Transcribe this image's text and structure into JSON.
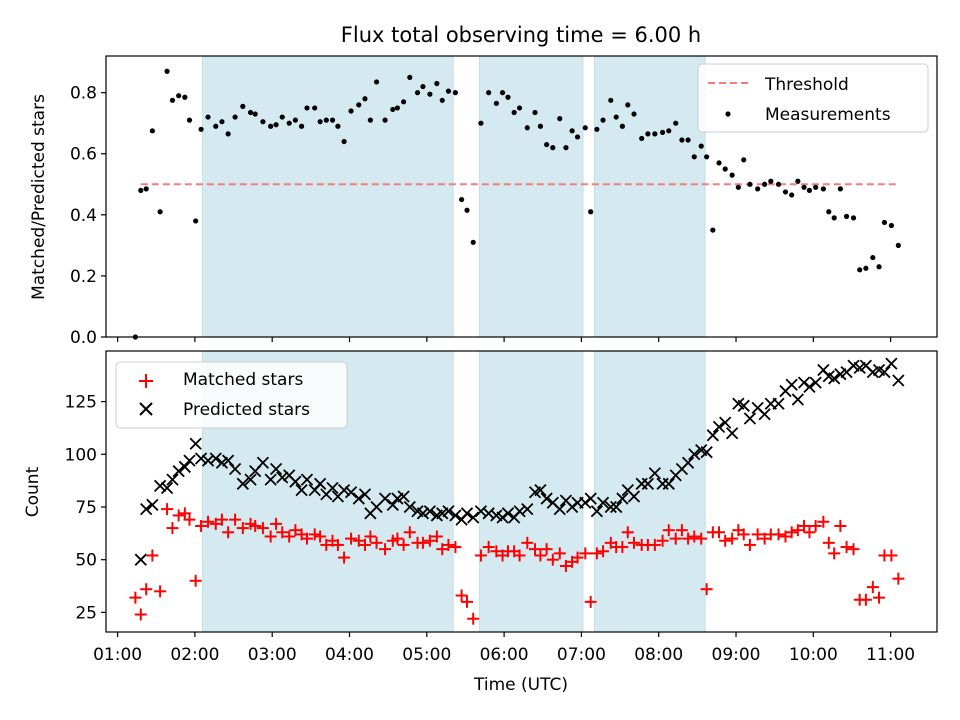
{
  "chart_data": {
    "type": "scatter",
    "title": "Flux total observing time = 6.00 h",
    "xlabel": "Time (UTC)",
    "x_unit": "hours UTC",
    "xlim": [
      0.85,
      11.6
    ],
    "xticks": [
      {
        "label": "01:00",
        "value": 1
      },
      {
        "label": "02:00",
        "value": 2
      },
      {
        "label": "03:00",
        "value": 3
      },
      {
        "label": "04:00",
        "value": 4
      },
      {
        "label": "05:00",
        "value": 5
      },
      {
        "label": "06:00",
        "value": 6
      },
      {
        "label": "07:00",
        "value": 7
      },
      {
        "label": "08:00",
        "value": 8
      },
      {
        "label": "09:00",
        "value": 9
      },
      {
        "label": "10:00",
        "value": 10
      },
      {
        "label": "11:00",
        "value": 11
      }
    ],
    "shaded_intervals": [
      [
        2.1,
        5.34
      ],
      [
        5.68,
        7.02
      ],
      [
        7.17,
        8.6
      ]
    ],
    "shade_color": "#d4eaf0",
    "top_panel": {
      "ylabel": "Matched/Predicted stars",
      "ylim": [
        0,
        0.92
      ],
      "yticks": [
        "0.0",
        "0.2",
        "0.4",
        "0.6",
        "0.8"
      ],
      "threshold": {
        "name": "Threshold",
        "value": 0.5,
        "x_range": [
          1.3,
          11.1
        ],
        "color": "#f47c7c"
      },
      "legend_position": "top-right",
      "series": [
        {
          "name": "Measurements",
          "color": "#000000",
          "x": [
            1.23,
            1.3,
            1.37,
            1.45,
            1.55,
            1.64,
            1.71,
            1.79,
            1.87,
            1.93,
            2.01,
            2.08,
            2.17,
            2.27,
            2.35,
            2.43,
            2.52,
            2.62,
            2.72,
            2.78,
            2.88,
            2.98,
            3.05,
            3.13,
            3.22,
            3.3,
            3.38,
            3.45,
            3.55,
            3.62,
            3.7,
            3.78,
            3.85,
            3.93,
            4.02,
            4.12,
            4.2,
            4.27,
            4.35,
            4.46,
            4.56,
            4.62,
            4.7,
            4.78,
            4.88,
            4.95,
            5.04,
            5.13,
            5.2,
            5.28,
            5.37,
            5.45,
            5.52,
            5.6,
            5.7,
            5.8,
            5.9,
            5.98,
            6.05,
            6.13,
            6.2,
            6.3,
            6.4,
            6.47,
            6.55,
            6.63,
            6.72,
            6.8,
            6.88,
            6.95,
            7.05,
            7.12,
            7.2,
            7.28,
            7.38,
            7.45,
            7.53,
            7.6,
            7.68,
            7.78,
            7.86,
            7.95,
            8.05,
            8.13,
            8.22,
            8.3,
            8.38,
            8.46,
            8.55,
            8.62,
            8.7,
            8.78,
            8.86,
            8.95,
            9.03,
            9.1,
            9.18,
            9.28,
            9.37,
            9.45,
            9.55,
            9.64,
            9.72,
            9.8,
            9.88,
            9.95,
            10.03,
            10.13,
            10.2,
            10.27,
            10.35,
            10.43,
            10.52,
            10.6,
            10.68,
            10.77,
            10.85,
            10.92,
            11.01,
            11.1
          ],
          "y": [
            0.0,
            0.48,
            0.485,
            0.675,
            0.41,
            0.87,
            0.775,
            0.79,
            0.785,
            0.71,
            0.38,
            0.68,
            0.72,
            0.69,
            0.705,
            0.665,
            0.72,
            0.755,
            0.735,
            0.73,
            0.705,
            0.69,
            0.695,
            0.72,
            0.7,
            0.71,
            0.69,
            0.75,
            0.75,
            0.705,
            0.71,
            0.71,
            0.69,
            0.64,
            0.74,
            0.76,
            0.78,
            0.71,
            0.835,
            0.71,
            0.745,
            0.75,
            0.77,
            0.85,
            0.8,
            0.82,
            0.795,
            0.83,
            0.775,
            0.805,
            0.8,
            0.45,
            0.415,
            0.31,
            0.7,
            0.8,
            0.765,
            0.8,
            0.785,
            0.735,
            0.75,
            0.685,
            0.735,
            0.69,
            0.63,
            0.62,
            0.715,
            0.62,
            0.675,
            0.655,
            0.685,
            0.41,
            0.68,
            0.71,
            0.775,
            0.72,
            0.69,
            0.76,
            0.73,
            0.65,
            0.665,
            0.665,
            0.67,
            0.675,
            0.7,
            0.645,
            0.645,
            0.59,
            0.625,
            0.59,
            0.35,
            0.57,
            0.55,
            0.53,
            0.49,
            0.58,
            0.5,
            0.485,
            0.5,
            0.51,
            0.5,
            0.475,
            0.465,
            0.51,
            0.49,
            0.48,
            0.49,
            0.485,
            0.41,
            0.39,
            0.485,
            0.395,
            0.39,
            0.22,
            0.225,
            0.26,
            0.23,
            0.375,
            0.365,
            0.3
          ]
        }
      ]
    },
    "bottom_panel": {
      "ylabel": "Count",
      "ylim": [
        15.7,
        149
      ],
      "yticks": [
        "25",
        "50",
        "75",
        "100",
        "125"
      ],
      "legend_position": "top-left",
      "series": [
        {
          "name": "Matched stars",
          "marker": "+",
          "color": "#ff0000",
          "x": [
            1.23,
            1.3,
            1.37,
            1.45,
            1.55,
            1.64,
            1.71,
            1.79,
            1.87,
            1.93,
            2.01,
            2.08,
            2.17,
            2.27,
            2.35,
            2.43,
            2.52,
            2.62,
            2.72,
            2.78,
            2.88,
            2.98,
            3.05,
            3.13,
            3.22,
            3.3,
            3.38,
            3.45,
            3.55,
            3.62,
            3.7,
            3.78,
            3.85,
            3.93,
            4.02,
            4.12,
            4.2,
            4.27,
            4.35,
            4.46,
            4.56,
            4.62,
            4.7,
            4.78,
            4.88,
            4.95,
            5.04,
            5.13,
            5.2,
            5.28,
            5.37,
            5.45,
            5.52,
            5.6,
            5.7,
            5.8,
            5.9,
            5.98,
            6.05,
            6.13,
            6.2,
            6.3,
            6.4,
            6.47,
            6.55,
            6.63,
            6.72,
            6.8,
            6.88,
            6.95,
            7.05,
            7.12,
            7.2,
            7.28,
            7.38,
            7.45,
            7.53,
            7.6,
            7.68,
            7.78,
            7.86,
            7.95,
            8.05,
            8.13,
            8.22,
            8.3,
            8.38,
            8.46,
            8.55,
            8.62,
            8.7,
            8.78,
            8.86,
            8.95,
            9.03,
            9.1,
            9.18,
            9.28,
            9.37,
            9.45,
            9.55,
            9.64,
            9.72,
            9.8,
            9.88,
            9.95,
            10.03,
            10.13,
            10.2,
            10.27,
            10.35,
            10.43,
            10.52,
            10.6,
            10.68,
            10.77,
            10.85,
            10.92,
            11.01,
            11.1
          ],
          "y": [
            32,
            24,
            36,
            52,
            35,
            74,
            65,
            71,
            72,
            69,
            40,
            66,
            68,
            67,
            69,
            63,
            69,
            65,
            67,
            66,
            65,
            61,
            67,
            63,
            61,
            64,
            62,
            60,
            62,
            61,
            57,
            59,
            57,
            51,
            60,
            59,
            57,
            61,
            58,
            55,
            59,
            60,
            57,
            63,
            58,
            58,
            59,
            61,
            55,
            57,
            56,
            33,
            30,
            22,
            52,
            56,
            54,
            52,
            54,
            54,
            52,
            58,
            55,
            52,
            55,
            50,
            53,
            47,
            49,
            51,
            53,
            30,
            53,
            54,
            58,
            56,
            56,
            63,
            58,
            57,
            57,
            57,
            59,
            64,
            60,
            64,
            60,
            61,
            60,
            36,
            63,
            63,
            59,
            60,
            64,
            62,
            57,
            62,
            60,
            62,
            62,
            61,
            63,
            64,
            66,
            63,
            66,
            68,
            58,
            53,
            66,
            56,
            55,
            31,
            31,
            37,
            32,
            52,
            52,
            41
          ]
        },
        {
          "name": "Predicted stars",
          "marker": "x",
          "color": "#000000",
          "x": [
            1.3,
            1.37,
            1.45,
            1.55,
            1.64,
            1.71,
            1.79,
            1.87,
            1.93,
            2.01,
            2.08,
            2.17,
            2.27,
            2.35,
            2.43,
            2.52,
            2.62,
            2.72,
            2.78,
            2.88,
            2.98,
            3.05,
            3.13,
            3.22,
            3.3,
            3.38,
            3.45,
            3.55,
            3.62,
            3.7,
            3.78,
            3.85,
            3.93,
            4.02,
            4.12,
            4.2,
            4.27,
            4.35,
            4.46,
            4.56,
            4.62,
            4.7,
            4.78,
            4.88,
            4.95,
            5.04,
            5.13,
            5.2,
            5.28,
            5.37,
            5.45,
            5.52,
            5.6,
            5.7,
            5.8,
            5.9,
            5.98,
            6.05,
            6.13,
            6.2,
            6.3,
            6.4,
            6.47,
            6.55,
            6.63,
            6.72,
            6.8,
            6.88,
            6.95,
            7.05,
            7.12,
            7.2,
            7.28,
            7.38,
            7.45,
            7.53,
            7.6,
            7.68,
            7.78,
            7.86,
            7.95,
            8.05,
            8.13,
            8.22,
            8.3,
            8.38,
            8.46,
            8.55,
            8.62,
            8.7,
            8.78,
            8.86,
            8.95,
            9.03,
            9.1,
            9.18,
            9.28,
            9.37,
            9.45,
            9.55,
            9.64,
            9.72,
            9.8,
            9.88,
            9.95,
            10.03,
            10.13,
            10.2,
            10.27,
            10.35,
            10.43,
            10.52,
            10.6,
            10.68,
            10.77,
            10.85,
            10.92,
            11.01,
            11.1
          ],
          "y": [
            50,
            74,
            76,
            85,
            84,
            88,
            92,
            94,
            97,
            105,
            98,
            97,
            98,
            96,
            97,
            93,
            86,
            88,
            92,
            96,
            88,
            93,
            89,
            90,
            87,
            83,
            88,
            83,
            86,
            81,
            84,
            80,
            83,
            82,
            79,
            81,
            72,
            75,
            79,
            76,
            79,
            80,
            75,
            73,
            72,
            73,
            71,
            72,
            73,
            71,
            69,
            72,
            70,
            73,
            72,
            71,
            70,
            72,
            70,
            73,
            74,
            82,
            83,
            79,
            77,
            74,
            78,
            75,
            77,
            77,
            79,
            73,
            77,
            75,
            75,
            79,
            83,
            80,
            86,
            86,
            91,
            86,
            86,
            90,
            93,
            96,
            100,
            102,
            101,
            109,
            113,
            115,
            110,
            124,
            123,
            117,
            122,
            119,
            124,
            124,
            130,
            133,
            126,
            134,
            132,
            134,
            140,
            137,
            136,
            138,
            139,
            142,
            141,
            142,
            139,
            140,
            139,
            143,
            135
          ]
        }
      ]
    }
  }
}
